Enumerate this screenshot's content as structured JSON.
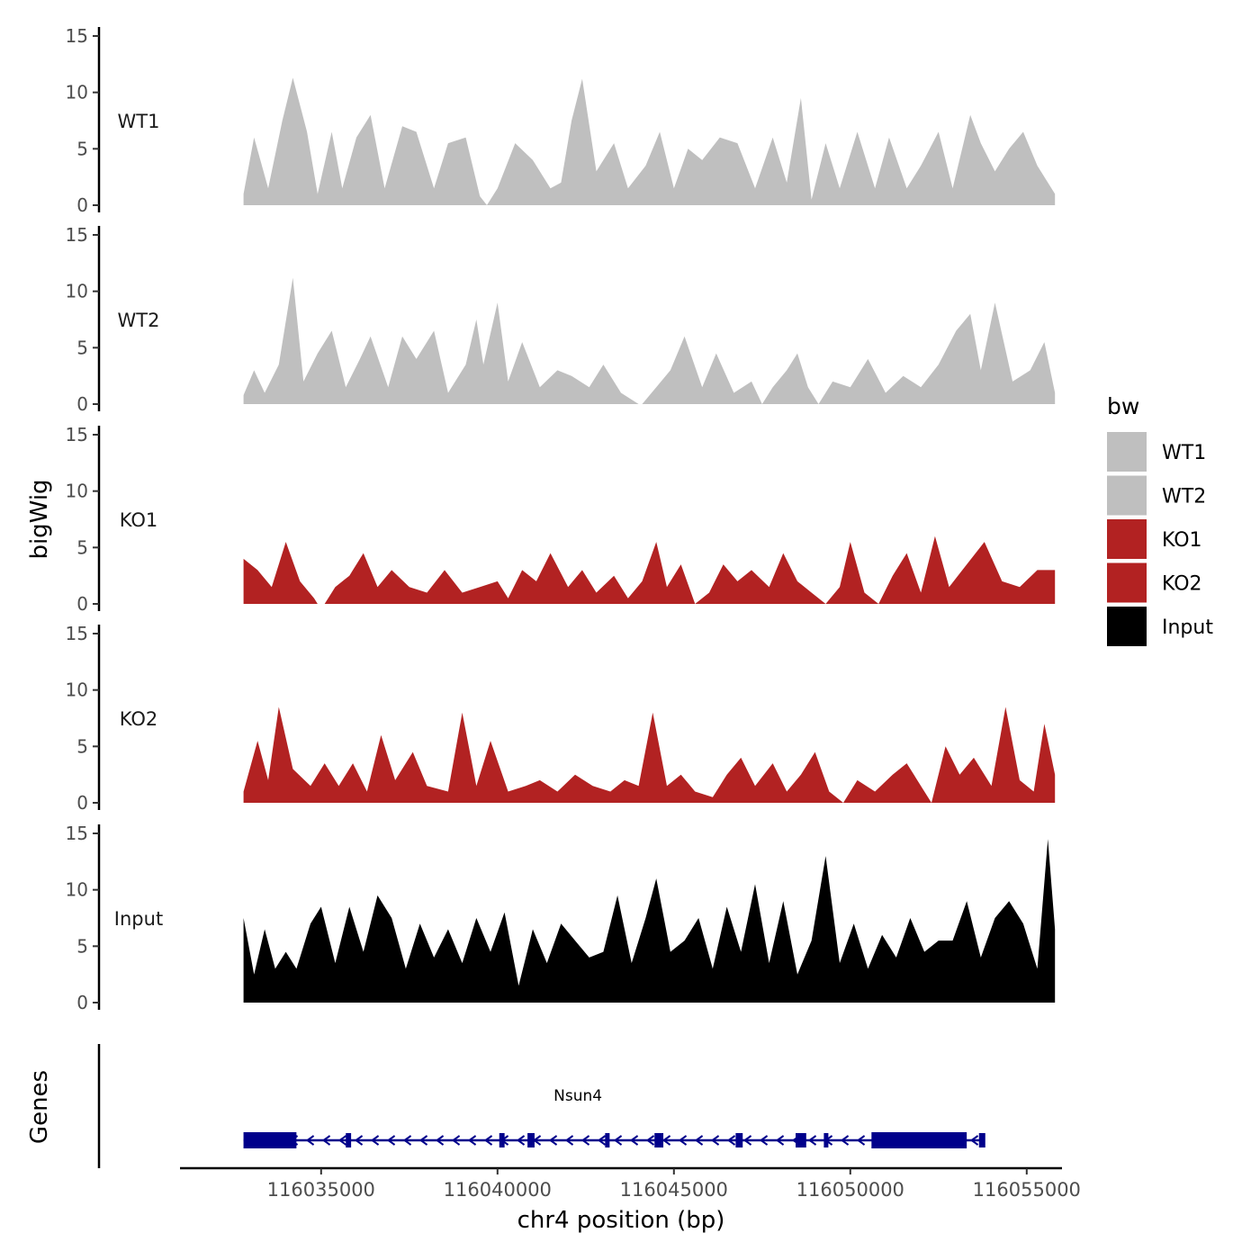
{
  "chart_data": [
    {
      "type": "area",
      "title": "",
      "ylabel": "bigWig",
      "ylim": [
        0,
        15
      ],
      "yticks": [
        "0",
        "5",
        "10",
        "15"
      ],
      "legend": {
        "title": "bw",
        "placement": "right",
        "entries": [
          {
            "label": "WT1",
            "color": "#bfbfbf"
          },
          {
            "label": "WT2",
            "color": "#bfbfbf"
          },
          {
            "label": "KO1",
            "color": "#b22222"
          },
          {
            "label": "KO2",
            "color": "#b22222"
          },
          {
            "label": "Input",
            "color": "#000000"
          }
        ]
      },
      "series": [
        {
          "name": "WT1",
          "color": "#bfbfbf",
          "x": [
            116032800,
            116033100,
            116033500,
            116033900,
            116034200,
            116034600,
            116034900,
            116035300,
            116035600,
            116036000,
            116036400,
            116036800,
            116037300,
            116037700,
            116038200,
            116038600,
            116039100,
            116039500,
            116039700,
            116040000,
            116040500,
            116041000,
            116041500,
            116041800,
            116042100,
            116042400,
            116042800,
            116043300,
            116043700,
            116044200,
            116044600,
            116045000,
            116045400,
            116045800,
            116046300,
            116046800,
            116047300,
            116047800,
            116048200,
            116048600,
            116048900,
            116049300,
            116049700,
            116050200,
            116050700,
            116051100,
            116051600,
            116052000,
            116052500,
            116052900,
            116053400,
            116053700,
            116054100,
            116054500,
            116054900,
            116055300,
            116055800
          ],
          "y": [
            1.0,
            6.0,
            1.5,
            7.5,
            11.3,
            6.5,
            1.0,
            6.5,
            1.5,
            6.0,
            8.0,
            1.5,
            7.0,
            6.5,
            1.5,
            5.5,
            6.0,
            0.8,
            0.0,
            1.5,
            5.5,
            4.0,
            1.5,
            2.0,
            7.5,
            11.2,
            3.0,
            5.5,
            1.5,
            3.5,
            6.5,
            1.5,
            5.0,
            4.0,
            6.0,
            5.5,
            1.5,
            6.0,
            2.0,
            9.5,
            0.5,
            5.5,
            1.5,
            6.5,
            1.5,
            6.0,
            1.5,
            3.5,
            6.5,
            1.5,
            8.0,
            5.5,
            3.0,
            5.0,
            6.5,
            3.5,
            1.0
          ]
        },
        {
          "name": "WT2",
          "color": "#bfbfbf",
          "x": [
            116032800,
            116033100,
            116033400,
            116033800,
            116034200,
            116034500,
            116034900,
            116035300,
            116035700,
            116036100,
            116036400,
            116036900,
            116037300,
            116037700,
            116038200,
            116038600,
            116039100,
            116039400,
            116039600,
            116040000,
            116040300,
            116040700,
            116041200,
            116041700,
            116042100,
            116042600,
            116043000,
            116043500,
            116044000,
            116044100,
            116044500,
            116044900,
            116045300,
            116045800,
            116046200,
            116046700,
            116047200,
            116047500,
            116047800,
            116048200,
            116048500,
            116048800,
            116049100,
            116049500,
            116050000,
            116050500,
            116051000,
            116051500,
            116052000,
            116052500,
            116053000,
            116053400,
            116053700,
            116054100,
            116054600,
            116055100,
            116055500,
            116055800
          ],
          "y": [
            0.8,
            3.0,
            1.0,
            3.5,
            11.2,
            2.0,
            4.5,
            6.5,
            1.5,
            4.0,
            6.0,
            1.5,
            6.0,
            4.0,
            6.5,
            1.0,
            3.5,
            7.5,
            3.5,
            9.0,
            2.0,
            5.5,
            1.5,
            3.0,
            2.5,
            1.5,
            3.5,
            1.0,
            0.0,
            0.0,
            1.5,
            3.0,
            6.0,
            1.5,
            4.5,
            1.0,
            2.0,
            0.0,
            1.5,
            3.0,
            4.5,
            1.5,
            0.0,
            2.0,
            1.5,
            4.0,
            1.0,
            2.5,
            1.5,
            3.5,
            6.5,
            8.0,
            3.0,
            9.0,
            2.0,
            3.0,
            5.5,
            1.0
          ]
        },
        {
          "name": "KO1",
          "color": "#b22222",
          "x": [
            116032800,
            116033200,
            116033600,
            116034000,
            116034400,
            116034800,
            116034900,
            116035100,
            116035400,
            116035800,
            116036200,
            116036600,
            116037000,
            116037500,
            116038000,
            116038500,
            116039000,
            116039500,
            116040000,
            116040300,
            116040700,
            116041100,
            116041500,
            116042000,
            116042400,
            116042800,
            116043300,
            116043700,
            116044100,
            116044500,
            116044800,
            116045200,
            116045600,
            116046000,
            116046400,
            116046800,
            116047200,
            116047700,
            116048100,
            116048500,
            116048900,
            116049300,
            116049700,
            116050000,
            116050400,
            116050800,
            116051200,
            116051600,
            116052000,
            116052400,
            116052800,
            116053300,
            116053800,
            116054300,
            116054800,
            116055300,
            116055800
          ],
          "y": [
            4.0,
            3.0,
            1.5,
            5.5,
            2.0,
            0.5,
            0.0,
            0.0,
            1.5,
            2.5,
            4.5,
            1.5,
            3.0,
            1.5,
            1.0,
            3.0,
            1.0,
            1.5,
            2.0,
            0.5,
            3.0,
            2.0,
            4.5,
            1.5,
            3.0,
            1.0,
            2.5,
            0.5,
            2.0,
            5.5,
            1.5,
            3.5,
            0.0,
            1.0,
            3.5,
            2.0,
            3.0,
            1.5,
            4.5,
            2.0,
            1.0,
            0.0,
            1.5,
            5.5,
            1.0,
            0.0,
            2.5,
            4.5,
            1.0,
            6.0,
            1.5,
            3.5,
            5.5,
            2.0,
            1.5,
            3.0,
            3.0
          ]
        },
        {
          "name": "KO2",
          "color": "#b22222",
          "x": [
            116032800,
            116033200,
            116033500,
            116033800,
            116034200,
            116034700,
            116035100,
            116035500,
            116035900,
            116036300,
            116036700,
            116037100,
            116037600,
            116038000,
            116038600,
            116039000,
            116039400,
            116039800,
            116040300,
            116040800,
            116041200,
            116041700,
            116042200,
            116042700,
            116043200,
            116043600,
            116044000,
            116044400,
            116044800,
            116045200,
            116045600,
            116046100,
            116046500,
            116046900,
            116047300,
            116047800,
            116048200,
            116048600,
            116049000,
            116049400,
            116049800,
            116050200,
            116050700,
            116051200,
            116051600,
            116052000,
            116052300,
            116052700,
            116053100,
            116053500,
            116054000,
            116054400,
            116054800,
            116055200,
            116055500,
            116055800
          ],
          "y": [
            1.0,
            5.5,
            2.0,
            8.5,
            3.0,
            1.5,
            3.5,
            1.5,
            3.5,
            1.0,
            6.0,
            2.0,
            4.5,
            1.5,
            1.0,
            8.0,
            1.5,
            5.5,
            1.0,
            1.5,
            2.0,
            1.0,
            2.5,
            1.5,
            1.0,
            2.0,
            1.5,
            8.0,
            1.5,
            2.5,
            1.0,
            0.5,
            2.5,
            4.0,
            1.5,
            3.5,
            1.0,
            2.5,
            4.5,
            1.0,
            0.0,
            2.0,
            1.0,
            2.5,
            3.5,
            1.5,
            0.0,
            5.0,
            2.5,
            4.0,
            1.5,
            8.5,
            2.0,
            1.0,
            7.0,
            2.5
          ]
        },
        {
          "name": "Input",
          "color": "#000000",
          "x": [
            116032800,
            116033100,
            116033400,
            116033700,
            116034000,
            116034300,
            116034700,
            116035000,
            116035400,
            116035800,
            116036200,
            116036600,
            116037000,
            116037400,
            116037800,
            116038200,
            116038600,
            116039000,
            116039400,
            116039800,
            116040200,
            116040600,
            116041000,
            116041400,
            116041800,
            116042200,
            116042600,
            116043000,
            116043400,
            116043800,
            116044200,
            116044500,
            116044900,
            116045300,
            116045700,
            116046100,
            116046500,
            116046900,
            116047300,
            116047700,
            116048100,
            116048500,
            116048900,
            116049300,
            116049700,
            116050100,
            116050500,
            116050900,
            116051300,
            116051700,
            116052100,
            116052500,
            116052900,
            116053300,
            116053700,
            116054100,
            116054500,
            116054900,
            116055300,
            116055600,
            116055800
          ],
          "y": [
            7.5,
            2.5,
            6.5,
            3.0,
            4.5,
            3.0,
            7.0,
            8.5,
            3.5,
            8.5,
            4.5,
            9.5,
            7.5,
            3.0,
            7.0,
            4.0,
            6.5,
            3.5,
            7.5,
            4.5,
            8.0,
            1.5,
            6.5,
            3.5,
            7.0,
            5.5,
            4.0,
            4.5,
            9.5,
            3.5,
            7.5,
            11.0,
            4.5,
            5.5,
            7.5,
            3.0,
            8.5,
            4.5,
            10.5,
            3.5,
            9.0,
            2.5,
            5.5,
            13.0,
            3.5,
            7.0,
            3.0,
            6.0,
            4.0,
            7.5,
            4.5,
            5.5,
            5.5,
            9.0,
            4.0,
            7.5,
            9.0,
            7.0,
            3.0,
            14.5,
            6.5
          ]
        }
      ]
    },
    {
      "type": "gene-track",
      "ylabel": "Genes",
      "xlabel": "chr4 position (bp)",
      "xlim": [
        116031000,
        116056000
      ],
      "xticks": [
        "116035000",
        "116040000",
        "116045000",
        "116050000",
        "116055000"
      ],
      "xtick_values": [
        116035000,
        116040000,
        116045000,
        116050000,
        116055000
      ],
      "gene": {
        "name": "Nsun4",
        "color": "#00008b",
        "strand": "-",
        "start": 116032800,
        "end": 116053800,
        "exons": [
          {
            "start": 116032800,
            "end": 116034300,
            "kind": "utr"
          },
          {
            "start": 116035700,
            "end": 116035850,
            "kind": "cds"
          },
          {
            "start": 116040050,
            "end": 116040200,
            "kind": "cds"
          },
          {
            "start": 116040850,
            "end": 116041050,
            "kind": "cds"
          },
          {
            "start": 116043050,
            "end": 116043150,
            "kind": "cds"
          },
          {
            "start": 116044450,
            "end": 116044700,
            "kind": "cds"
          },
          {
            "start": 116046750,
            "end": 116046950,
            "kind": "cds"
          },
          {
            "start": 116048450,
            "end": 116048750,
            "kind": "cds"
          },
          {
            "start": 116049250,
            "end": 116049350,
            "kind": "cds"
          },
          {
            "start": 116050600,
            "end": 116053300,
            "kind": "utr"
          }
        ]
      }
    }
  ]
}
